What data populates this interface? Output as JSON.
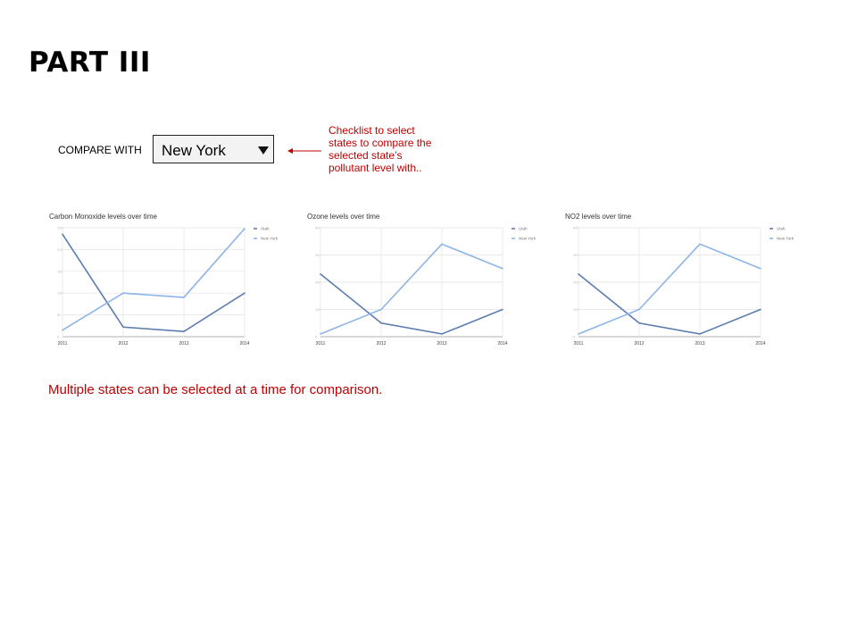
{
  "page": {
    "title": "PART III",
    "compare_label": "COMPARE WITH",
    "compare_value": "New York",
    "annotation": "Checklist to select states to compare the selected state’s pollutant level with..",
    "footer_note": "Multiple states can be selected at a time for comparison."
  },
  "colors": {
    "utah": "#5b7db1",
    "new_york": "#8cb4e8",
    "annotation": "#c00000"
  },
  "chart_data": [
    {
      "type": "line",
      "title": "Carbon Monoxide levels over time",
      "x": [
        "2011",
        "2012",
        "2013",
        "2014"
      ],
      "ylim": [
        0,
        250
      ],
      "yticks": [
        "250",
        "200",
        "150",
        "100",
        "50",
        "0"
      ],
      "grid": true,
      "legend": "top-right",
      "series": [
        {
          "name": "Utah",
          "values": [
            235,
            22,
            12,
            100
          ]
        },
        {
          "name": "New York",
          "values": [
            15,
            100,
            90,
            248
          ]
        }
      ]
    },
    {
      "type": "line",
      "title": "Ozone levels over time",
      "x": [
        "2011",
        "2012",
        "2013",
        "2014"
      ],
      "ylim": [
        0,
        400
      ],
      "yticks": [
        "400",
        "300",
        "200",
        "100",
        "0"
      ],
      "grid": true,
      "legend": "top-right",
      "series": [
        {
          "name": "Utah",
          "values": [
            230,
            50,
            10,
            100
          ]
        },
        {
          "name": "New York",
          "values": [
            10,
            100,
            340,
            250
          ]
        }
      ]
    },
    {
      "type": "line",
      "title": "NO2 levels over time",
      "x": [
        "2011",
        "2012",
        "2013",
        "2014"
      ],
      "ylim": [
        0,
        400
      ],
      "yticks": [
        "400",
        "300",
        "200",
        "100",
        "0"
      ],
      "grid": true,
      "legend": "top-right",
      "series": [
        {
          "name": "Utah",
          "values": [
            230,
            50,
            10,
            100
          ]
        },
        {
          "name": "New York",
          "values": [
            10,
            100,
            340,
            250
          ]
        }
      ]
    }
  ]
}
